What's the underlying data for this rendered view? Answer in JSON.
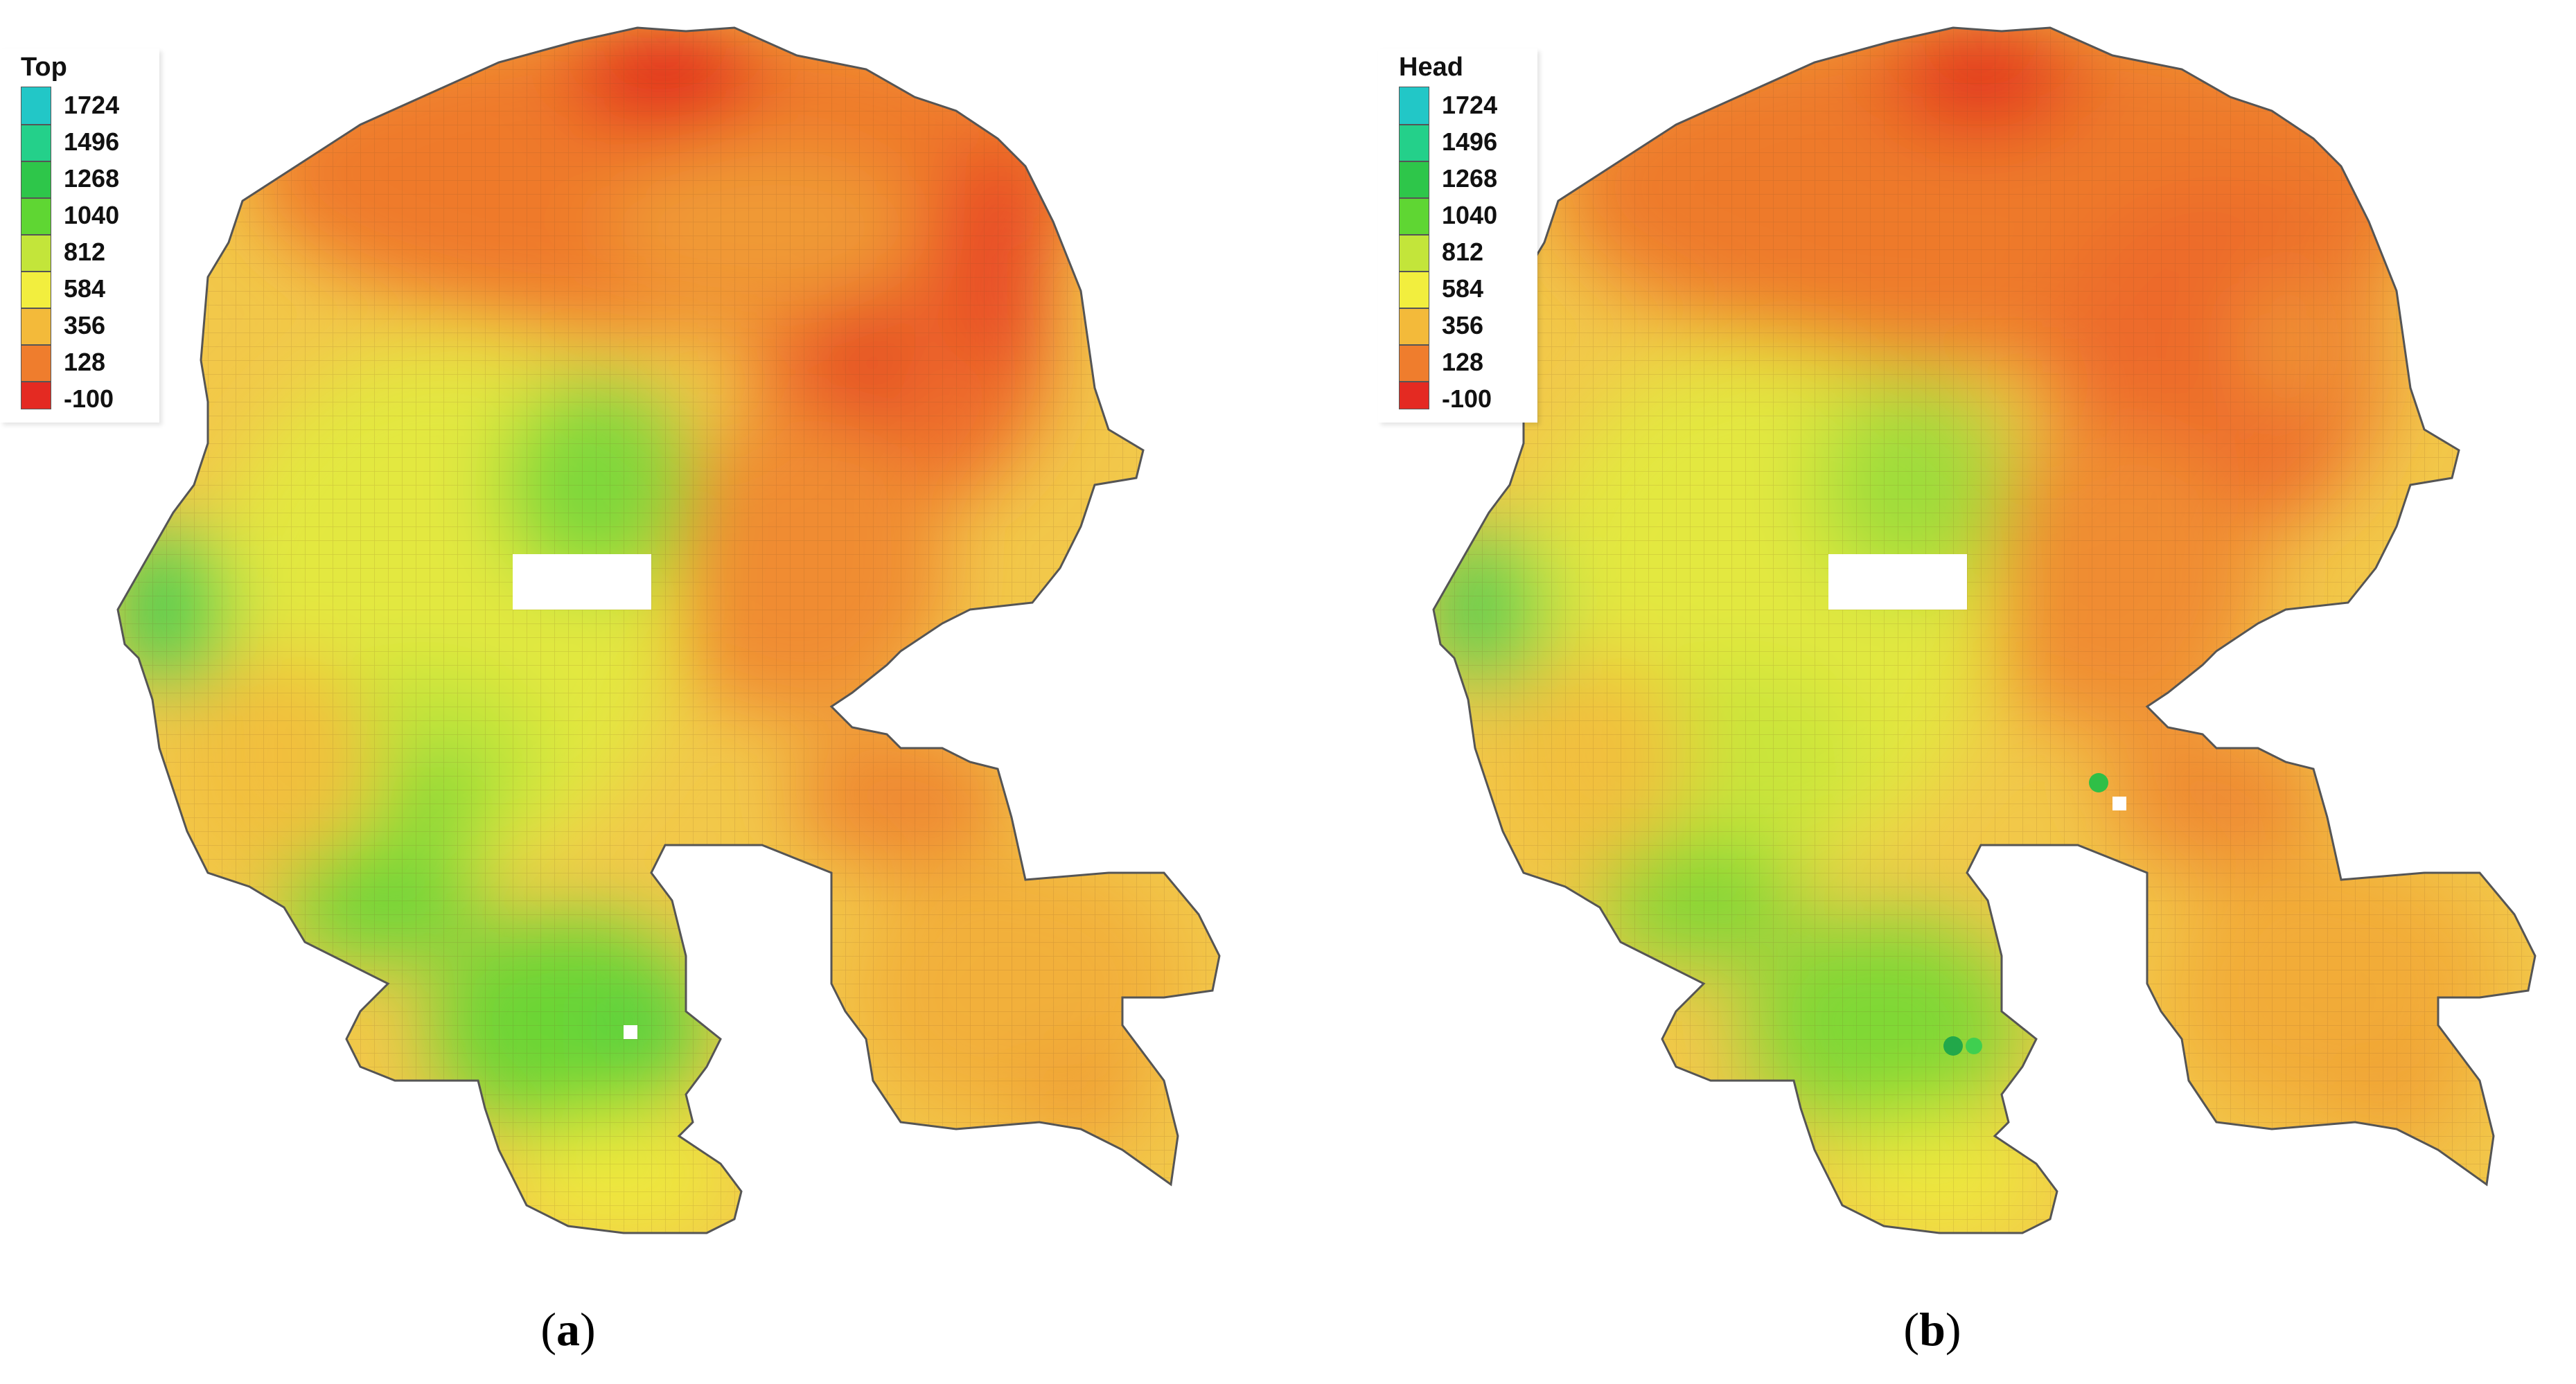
{
  "panels": [
    {
      "id": "a",
      "legend": {
        "title": "Top",
        "items": [
          {
            "label": "1724",
            "color": "#22c7c7"
          },
          {
            "label": "1496",
            "color": "#24d08a"
          },
          {
            "label": "1268",
            "color": "#2ec64a"
          },
          {
            "label": "1040",
            "color": "#5fd633"
          },
          {
            "label": "812",
            "color": "#c3e53a"
          },
          {
            "label": "584",
            "color": "#f2ee3e"
          },
          {
            "label": "356",
            "color": "#f3ba3a"
          },
          {
            "label": "128",
            "color": "#ef7d2d"
          },
          {
            "label": "-100",
            "color": "#e42a22"
          }
        ]
      },
      "caption": {
        "open": "(",
        "letter": "a",
        "close": ")"
      }
    },
    {
      "id": "b",
      "legend": {
        "title": "Head",
        "items": [
          {
            "label": "1724",
            "color": "#22c7c7"
          },
          {
            "label": "1496",
            "color": "#24d08a"
          },
          {
            "label": "1268",
            "color": "#2ec64a"
          },
          {
            "label": "1040",
            "color": "#5fd633"
          },
          {
            "label": "812",
            "color": "#c3e53a"
          },
          {
            "label": "584",
            "color": "#f2ee3e"
          },
          {
            "label": "356",
            "color": "#f3ba3a"
          },
          {
            "label": "128",
            "color": "#ef7d2d"
          },
          {
            "label": "-100",
            "color": "#e42a22"
          }
        ]
      },
      "caption": {
        "open": "(",
        "letter": "b",
        "close": ")"
      }
    }
  ]
}
